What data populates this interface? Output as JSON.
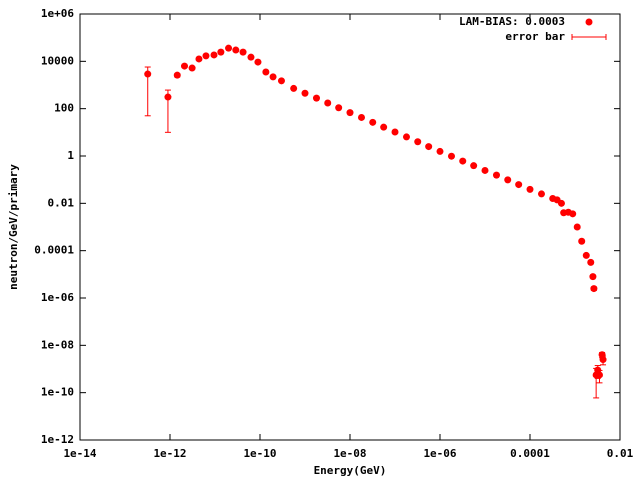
{
  "chart_data": {
    "type": "scatter",
    "xlabel": "Energy(GeV)",
    "ylabel": "neutron/GeV/primary",
    "log_x": true,
    "log_y": true,
    "xlim": [
      1e-14,
      0.01
    ],
    "ylim": [
      1e-12,
      1000000
    ],
    "xticks": [
      1e-14,
      1e-12,
      1e-10,
      {
        "value": 1e-08,
        "label": "1e-08"
      },
      {
        "value": 1e-06,
        "label": "1e-06"
      },
      0.0001,
      0.01
    ],
    "yticks": [
      1e-12,
      1e-10,
      {
        "value": 1e-08,
        "label": "1e-08"
      },
      {
        "value": 1e-06,
        "label": "1e-06"
      },
      0.0001,
      0.01,
      1,
      100,
      10000,
      {
        "value": 1000000,
        "label": "1e+06"
      }
    ],
    "legend": "top-right",
    "error_legend": "error bar",
    "series": [
      {
        "name": "LAM-BIAS: 0.0003",
        "color": "#ff0000",
        "x": [
          3.2e-13,
          9e-13,
          1.45e-12,
          2.1e-12,
          3.1e-12,
          4.4e-12,
          6.3e-12,
          9.5e-12,
          1.35e-11,
          2e-11,
          2.9e-11,
          4.2e-11,
          6.3e-11,
          9e-11,
          1.35e-10,
          1.95e-10,
          3e-10,
          5.6e-10,
          1e-09,
          1.8e-09,
          3.2e-09,
          5.6e-09,
          1e-08,
          1.8e-08,
          3.2e-08,
          5.6e-08,
          1e-07,
          1.8e-07,
          3.2e-07,
          5.6e-07,
          1e-06,
          1.8e-06,
          3.2e-06,
          5.6e-06,
          1e-05,
          1.8e-05,
          3.2e-05,
          5.6e-05,
          0.0001,
          0.00018,
          0.00032,
          0.0004,
          0.0005,
          0.00056,
          0.00071,
          0.00089,
          0.00112,
          0.00141,
          0.00178,
          0.00224,
          0.0025,
          0.00263,
          0.00295,
          0.0032,
          0.0035,
          0.004,
          0.0042
        ],
        "values": [
          2900,
          310,
          2600,
          6300,
          5200,
          12600,
          17000,
          18600,
          24500,
          36000,
          30000,
          24500,
          15000,
          9300,
          3550,
          2200,
          1500,
          716,
          447,
          279,
          174,
          109,
          68,
          42.5,
          26.5,
          16.5,
          10.3,
          6.4,
          4.0,
          2.5,
          1.56,
          0.98,
          0.61,
          0.39,
          0.245,
          0.155,
          0.098,
          0.062,
          0.039,
          0.025,
          0.016,
          0.014,
          0.01,
          0.004,
          0.0042,
          0.0036,
          0.001,
          0.00025,
          6.3e-05,
          3.2e-05,
          8e-06,
          2.5e-06,
          5.6e-10,
          9e-10,
          5.6e-10,
          4e-09,
          2.5e-09
        ],
        "errors": [
          2850,
          300,
          400,
          500,
          400,
          600,
          700,
          700,
          800,
          1000,
          1000,
          800,
          600,
          400,
          200,
          150,
          100,
          20,
          13,
          8,
          5,
          3,
          2,
          1.2,
          0.8,
          0.5,
          0.3,
          0.2,
          0.12,
          0.08,
          0.05,
          0.03,
          0.02,
          0.012,
          0.008,
          0.005,
          0.003,
          0.002,
          0.0012,
          0.0008,
          0.0005,
          0.0004,
          0.0003,
          0.0004,
          0.0004,
          0.0003,
          0.0001,
          3e-05,
          8e-06,
          4e-06,
          1e-06,
          4e-07,
          5e-10,
          5e-10,
          3e-10,
          1e-09,
          1e-09
        ]
      }
    ]
  }
}
